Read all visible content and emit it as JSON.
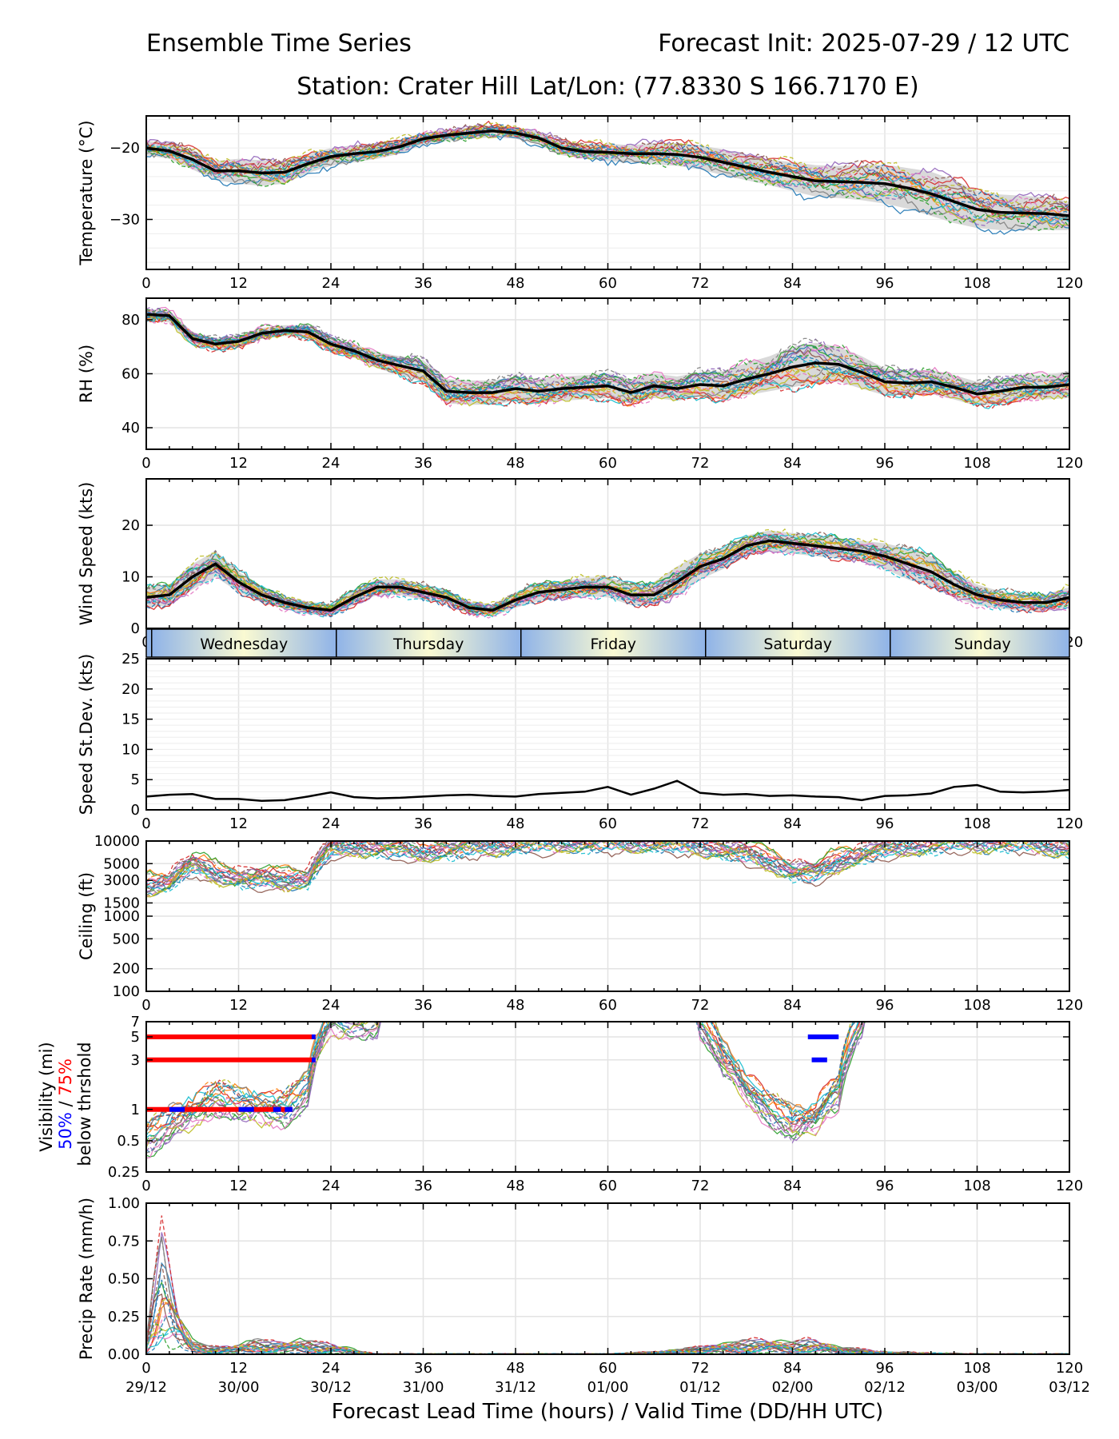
{
  "header": {
    "left_title": "Ensemble Time Series",
    "right_title": "Forecast Init: 2025-07-29 / 12 UTC",
    "station": "Station: Crater Hill",
    "latlon": "Lat/Lon: (77.8330 S 166.7170 E)"
  },
  "x_axis": {
    "label": "Forecast Lead Time (hours) / Valid Time (DD/HH UTC)",
    "lead_ticks": [
      "0",
      "12",
      "24",
      "36",
      "48",
      "60",
      "72",
      "84",
      "96",
      "108",
      "120"
    ],
    "valid_ticks": [
      "29/12",
      "30/00",
      "30/12",
      "31/00",
      "31/12",
      "01/00",
      "01/12",
      "02/00",
      "02/12",
      "03/00",
      "03/12"
    ]
  },
  "day_band": {
    "days": [
      "Wednesday",
      "Thursday",
      "Friday",
      "Saturday",
      "Sunday"
    ],
    "day_start_hours": [
      0.7,
      24.7,
      48.7,
      72.7,
      96.7
    ]
  },
  "legend": {
    "blue_label": "50%",
    "slash": " / ",
    "red_label": "75%",
    "below_label": "below thrshold"
  },
  "colors": {
    "mean_line": "#000000",
    "spread_band": "#d9d9d9",
    "member_palette": [
      "#1f77b4",
      "#ff7f0e",
      "#2ca02c",
      "#d62728",
      "#9467bd",
      "#8c564b",
      "#e377c2",
      "#7f7f7f",
      "#bcbd22",
      "#17becf"
    ],
    "threshold_75": "#ff0000",
    "threshold_50": "#0000ff",
    "daybar_blue": "#8fb3e8",
    "daybar_light": "#fafad2"
  },
  "chart_data": [
    {
      "type": "line",
      "ylabel": "Temperature (°C)",
      "ylim": [
        -37,
        -15.5
      ],
      "yticks": [
        -30,
        -20
      ],
      "x": [
        0,
        3,
        6,
        9,
        12,
        15,
        18,
        21,
        24,
        27,
        30,
        33,
        36,
        39,
        42,
        45,
        48,
        51,
        54,
        57,
        60,
        63,
        66,
        69,
        72,
        75,
        78,
        81,
        84,
        87,
        90,
        93,
        96,
        99,
        102,
        105,
        108,
        111,
        114,
        117,
        120
      ],
      "series": [
        {
          "name": "mean",
          "values": [
            -20,
            -20.4,
            -21.6,
            -23.2,
            -23.2,
            -23.5,
            -23.4,
            -22.2,
            -21.2,
            -20.8,
            -20.5,
            -19.8,
            -18.7,
            -18.2,
            -17.9,
            -17.6,
            -17.9,
            -18.6,
            -20,
            -20.5,
            -20.6,
            -20.8,
            -20.8,
            -20.9,
            -21.3,
            -22,
            -22.7,
            -23.4,
            -24,
            -24.6,
            -24.7,
            -24.8,
            -25,
            -25.6,
            -26.4,
            -27.5,
            -28.6,
            -29,
            -29.1,
            -29.2,
            -29.5
          ]
        },
        {
          "name": "spread_low",
          "values": [
            -21,
            -21.5,
            -23,
            -24.5,
            -25,
            -25.3,
            -25,
            -23.5,
            -22.5,
            -22,
            -21.5,
            -20.8,
            -19.5,
            -19,
            -18.7,
            -18.5,
            -18.7,
            -19.5,
            -21,
            -21.5,
            -21.8,
            -22,
            -22.3,
            -22.5,
            -23,
            -23.8,
            -24.5,
            -25.2,
            -26,
            -26.8,
            -27,
            -27.3,
            -27.8,
            -28.5,
            -29.5,
            -30.5,
            -31.2,
            -31.5,
            -31.5,
            -31.5,
            -31.5
          ]
        },
        {
          "name": "spread_high",
          "values": [
            -19,
            -19.3,
            -20.2,
            -21.8,
            -21.5,
            -21.7,
            -21.8,
            -20.8,
            -20,
            -19.6,
            -19.5,
            -18.8,
            -17.9,
            -17.4,
            -17.1,
            -16.8,
            -17.1,
            -17.7,
            -19,
            -19.5,
            -19.4,
            -19.6,
            -19.3,
            -19.3,
            -19.6,
            -20.2,
            -20.9,
            -21.6,
            -22,
            -22.4,
            -22.5,
            -22.4,
            -22.3,
            -22.8,
            -23.3,
            -24.5,
            -26,
            -26.5,
            -26.7,
            -26.9,
            -27.5
          ]
        }
      ]
    },
    {
      "type": "line",
      "ylabel": "RH (%)",
      "ylim": [
        32,
        88
      ],
      "yticks": [
        40,
        60,
        80
      ],
      "x": [
        0,
        3,
        6,
        9,
        12,
        15,
        18,
        21,
        24,
        27,
        30,
        33,
        36,
        39,
        42,
        45,
        48,
        51,
        54,
        57,
        60,
        63,
        66,
        69,
        72,
        75,
        78,
        81,
        84,
        87,
        90,
        93,
        96,
        99,
        102,
        105,
        108,
        111,
        114,
        117,
        120
      ],
      "series": [
        {
          "name": "mean",
          "values": [
            82,
            81.5,
            73,
            71,
            72,
            75,
            76,
            75.5,
            71,
            68.5,
            65,
            63,
            61,
            53.5,
            53,
            53,
            54.5,
            53.5,
            54.5,
            55,
            55.5,
            53,
            55.5,
            54.5,
            56,
            55.5,
            58,
            60,
            62.5,
            64,
            63.5,
            60.5,
            57,
            56.5,
            57,
            55,
            52.5,
            53.5,
            55,
            55,
            56
          ]
        },
        {
          "name": "spread_low",
          "values": [
            80,
            79,
            70.5,
            69,
            70,
            73,
            74,
            73,
            68.5,
            66,
            62,
            59.5,
            57,
            49,
            48.5,
            48.5,
            50,
            49,
            50,
            50.5,
            51,
            49,
            51,
            50,
            51.5,
            50.5,
            52,
            53.5,
            55,
            56.5,
            57,
            54.5,
            52,
            52,
            52.5,
            50.5,
            48,
            49,
            50.5,
            50.5,
            51
          ]
        },
        {
          "name": "spread_high",
          "values": [
            84,
            83.5,
            75.5,
            73,
            74,
            77,
            78,
            78,
            73.5,
            71,
            68,
            66.5,
            65,
            58,
            57.5,
            57.5,
            59,
            58,
            59,
            59.5,
            60,
            58,
            60,
            59,
            60.5,
            61,
            64,
            66.5,
            70,
            71.5,
            70,
            66.5,
            62,
            61,
            61.5,
            59.5,
            57,
            58,
            59.5,
            59.5,
            61
          ]
        }
      ]
    },
    {
      "type": "line",
      "ylabel": "Wind Speed (kts)",
      "ylim": [
        0,
        29
      ],
      "yticks": [
        0,
        10,
        20
      ],
      "x": [
        0,
        3,
        6,
        9,
        12,
        15,
        18,
        21,
        24,
        27,
        30,
        33,
        36,
        39,
        42,
        45,
        48,
        51,
        54,
        57,
        60,
        63,
        66,
        69,
        72,
        75,
        78,
        81,
        84,
        87,
        90,
        93,
        96,
        99,
        102,
        105,
        108,
        111,
        114,
        117,
        120
      ],
      "series": [
        {
          "name": "mean",
          "values": [
            6,
            6.5,
            10,
            12.5,
            9,
            6.5,
            5,
            4,
            3.5,
            6,
            8,
            8,
            7,
            6,
            4,
            3.5,
            5.5,
            7,
            7.5,
            8,
            8,
            6.5,
            6.5,
            9,
            12,
            13.5,
            16,
            17,
            16.5,
            16,
            15.5,
            15,
            14,
            12.5,
            11,
            8.5,
            6.5,
            5.5,
            5,
            5,
            6
          ]
        },
        {
          "name": "spread_low",
          "values": [
            4,
            4.5,
            7.5,
            10,
            7,
            5,
            3.8,
            2.8,
            2.3,
            4.5,
            6.5,
            6.5,
            5.5,
            4.7,
            2.8,
            2.3,
            4,
            5.3,
            5.8,
            6.2,
            6,
            4.5,
            4.5,
            6.5,
            9.5,
            11.5,
            14,
            15,
            14.5,
            14,
            13.5,
            13,
            11.5,
            9.5,
            8,
            6,
            4.5,
            3.8,
            3.4,
            3.4,
            4
          ]
        },
        {
          "name": "spread_high",
          "values": [
            8,
            8.5,
            12.5,
            15,
            11,
            8,
            6.2,
            5.2,
            4.7,
            7.5,
            9.5,
            9.5,
            8.5,
            7.3,
            5.2,
            4.7,
            7,
            8.7,
            9.2,
            9.8,
            10,
            8.5,
            9,
            12,
            14.5,
            15.5,
            18,
            19,
            18.5,
            18,
            17.5,
            17,
            16.5,
            15.5,
            14,
            11,
            8.5,
            7.2,
            6.6,
            6.6,
            8
          ]
        }
      ]
    },
    {
      "type": "line",
      "ylabel": "Speed St.Dev. (kts)",
      "ylim": [
        0,
        25
      ],
      "yticks": [
        0,
        5,
        10,
        15,
        20,
        25
      ],
      "x": [
        0,
        3,
        6,
        9,
        12,
        15,
        18,
        21,
        24,
        27,
        30,
        33,
        36,
        39,
        42,
        45,
        48,
        51,
        54,
        57,
        60,
        63,
        66,
        69,
        72,
        75,
        78,
        81,
        84,
        87,
        90,
        93,
        96,
        99,
        102,
        105,
        108,
        111,
        114,
        117,
        120
      ],
      "series": [
        {
          "name": "std",
          "values": [
            2.2,
            2.5,
            2.6,
            1.8,
            1.8,
            1.5,
            1.6,
            2.2,
            2.9,
            2.1,
            1.9,
            2,
            2.2,
            2.4,
            2.5,
            2.3,
            2.2,
            2.6,
            2.8,
            3,
            3.8,
            2.5,
            3.5,
            4.8,
            2.8,
            2.5,
            2.6,
            2.3,
            2.4,
            2.2,
            2.1,
            1.6,
            2.3,
            2.4,
            2.7,
            3.8,
            4.1,
            3,
            2.9,
            3,
            3.3
          ]
        }
      ]
    },
    {
      "type": "line",
      "ylabel": "Ceiling (ft)",
      "yscale": "log",
      "ylim": [
        100,
        10000
      ],
      "yticks": [
        "100",
        "200",
        "500",
        "1000",
        "1500",
        "3000",
        "5000",
        "10000"
      ],
      "x": [
        0,
        3,
        6,
        9,
        12,
        15,
        18,
        21,
        24,
        27,
        30,
        33,
        36,
        39,
        42,
        45,
        48,
        51,
        54,
        57,
        60,
        63,
        66,
        69,
        72,
        75,
        78,
        81,
        84,
        87,
        90,
        93,
        96,
        99,
        102,
        105,
        108,
        111,
        114,
        117,
        120
      ],
      "series": [
        {
          "name": "ensemble_typical",
          "values": [
            2600,
            3000,
            5000,
            3800,
            3400,
            3200,
            3100,
            3300,
            8000,
            9000,
            8500,
            8000,
            7500,
            8000,
            8500,
            9000,
            9500,
            9500,
            10000,
            10000,
            10000,
            10000,
            10000,
            9500,
            9000,
            8000,
            7000,
            5500,
            4200,
            3800,
            5500,
            7000,
            8000,
            9000,
            9500,
            10000,
            10000,
            10000,
            10000,
            9000,
            8500
          ]
        }
      ]
    },
    {
      "type": "line",
      "ylabel": "Visibility (mi)",
      "yscale": "log",
      "ylim": [
        0.25,
        7
      ],
      "yticks": [
        "0.25",
        "0.5",
        "1",
        "3",
        "5",
        "7"
      ],
      "threshold_bars": [
        {
          "level": 5,
          "pct75_hours": [
            0,
            22
          ],
          "pct50_hours": [
            [
              21.5,
              22
            ],
            [
              86,
              90
            ]
          ]
        },
        {
          "level": 3,
          "pct75_hours": [
            0,
            22
          ],
          "pct50_hours": [
            [
              21.5,
              22
            ],
            [
              86.5,
              88.5
            ]
          ]
        },
        {
          "level": 1,
          "pct75_hours": [
            0,
            19
          ],
          "pct50_hours": [
            [
              3,
              5
            ],
            [
              12,
              14
            ],
            [
              16.5,
              17.5
            ],
            [
              18,
              19
            ]
          ]
        }
      ],
      "x": [
        0,
        3,
        6,
        9,
        12,
        15,
        18,
        21,
        24,
        27,
        30,
        72,
        75,
        78,
        81,
        84,
        87,
        90,
        93
      ],
      "series": [
        {
          "name": "ensemble_typical",
          "values": [
            0.5,
            0.7,
            0.9,
            1.3,
            1.1,
            1.0,
            1.0,
            1.5,
            7,
            7,
            7,
            7,
            3,
            1.5,
            1.0,
            0.7,
            0.8,
            1.5,
            7
          ]
        }
      ]
    },
    {
      "type": "line",
      "ylabel": "Precip Rate (mm/h)",
      "ylim": [
        0,
        1
      ],
      "yticks": [
        "0.00",
        "0.25",
        "0.50",
        "0.75",
        "1.00"
      ],
      "x": [
        0,
        1,
        2,
        3,
        4,
        5,
        6,
        8,
        10,
        12,
        14,
        16,
        18,
        20,
        22,
        24,
        26,
        28,
        30,
        36,
        48,
        60,
        66,
        72,
        76,
        80,
        84,
        86,
        88,
        90,
        96,
        108,
        120
      ],
      "series": [
        {
          "name": "ensemble_typical",
          "values": [
            0.05,
            0.3,
            0.5,
            0.35,
            0.2,
            0.12,
            0.06,
            0.03,
            0.03,
            0.04,
            0.06,
            0.05,
            0.05,
            0.06,
            0.05,
            0.04,
            0.03,
            0.01,
            0,
            0,
            0,
            0,
            0.01,
            0.03,
            0.05,
            0.06,
            0.05,
            0.06,
            0.05,
            0.03,
            0.01,
            0,
            0
          ]
        }
      ]
    }
  ]
}
